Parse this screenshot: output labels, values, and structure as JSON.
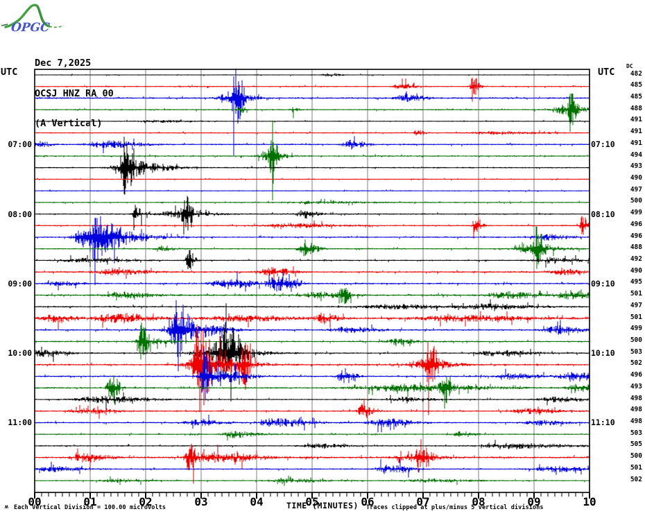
{
  "logo": {
    "text": "OPGC"
  },
  "header": {
    "date": "Dec 7,2025",
    "station": "OCSJ HNZ RA 00",
    "component": "(A Vertical)"
  },
  "axis": {
    "left_label": "UTC",
    "right_label": "UTC",
    "dc_label": "DC",
    "x_title": "TIME (MINUTES)",
    "x_ticks": [
      "00",
      "01",
      "02",
      "03",
      "04",
      "05",
      "06",
      "07",
      "08",
      "09",
      "10"
    ],
    "minor_ticks_per_major": 8,
    "left_times": [
      {
        "row": 6,
        "label": "07:00"
      },
      {
        "row": 12,
        "label": "08:00"
      },
      {
        "row": 18,
        "label": "09:00"
      },
      {
        "row": 24,
        "label": "10:00"
      },
      {
        "row": 30,
        "label": "11:00"
      }
    ],
    "right_times": [
      {
        "row": 6,
        "label": "07:10"
      },
      {
        "row": 12,
        "label": "08:10"
      },
      {
        "row": 18,
        "label": "09:10"
      },
      {
        "row": 24,
        "label": "10:10"
      },
      {
        "row": 30,
        "label": "11:10"
      }
    ]
  },
  "footer": {
    "corner_mark": "ʍ",
    "left": "Each Vertical Division =  100.00 microvolts",
    "right": "Traces clipped at plus/minus 5 vertical divisions"
  },
  "colors": {
    "black": "#000000",
    "red": "#ee0000",
    "blue": "#0000dd",
    "green": "#007100",
    "grid": "#7f7f7f",
    "logo_blue": "#4456c8",
    "logo_green": "#44a044"
  },
  "chart_data": {
    "type": "line",
    "subtype": "helicorder-seismogram",
    "x_unit": "minutes",
    "x_range": [
      0,
      10
    ],
    "minutes_per_row": 10,
    "clip_divisions": 5,
    "microvolts_per_division": 100.0,
    "rows": [
      {
        "start_utc": "06:00",
        "color": "black",
        "dc": 482,
        "noise": 0.7,
        "events": [
          [
            5.3,
            0.1,
            2.5
          ]
        ]
      },
      {
        "start_utc": "06:10",
        "color": "red",
        "dc": 485,
        "noise": 0.9,
        "events": [
          [
            7.9,
            0.05,
            14
          ],
          [
            6.6,
            0.12,
            4
          ]
        ]
      },
      {
        "start_utc": "06:20",
        "color": "blue",
        "dc": 485,
        "noise": 1.2,
        "events": [
          [
            3.62,
            0.05,
            36
          ],
          [
            3.5,
            0.18,
            9
          ],
          [
            6.7,
            0.15,
            6
          ]
        ]
      },
      {
        "start_utc": "06:30",
        "color": "green",
        "dc": 488,
        "noise": 1.0,
        "events": [
          [
            9.66,
            0.04,
            30
          ],
          [
            9.55,
            0.18,
            7
          ],
          [
            3.7,
            0.05,
            5
          ],
          [
            4.65,
            0.05,
            5
          ]
        ]
      },
      {
        "start_utc": "06:40",
        "color": "black",
        "dc": 491,
        "noise": 0.8,
        "events": [
          [
            2.2,
            0.3,
            1.5
          ]
        ]
      },
      {
        "start_utc": "06:50",
        "color": "red",
        "dc": 491,
        "noise": 0.9,
        "events": [
          [
            6.9,
            0.06,
            5
          ],
          [
            8.3,
            0.4,
            2
          ]
        ]
      },
      {
        "start_utc": "07:00",
        "color": "blue",
        "dc": 491,
        "noise": 1.1,
        "events": [
          [
            1.25,
            0.3,
            5
          ],
          [
            5.7,
            0.12,
            7
          ],
          [
            0.1,
            0.1,
            4
          ]
        ]
      },
      {
        "start_utc": "07:10",
        "color": "green",
        "dc": 494,
        "noise": 1.1,
        "events": [
          [
            4.27,
            0.04,
            60
          ],
          [
            4.2,
            0.15,
            7
          ]
        ]
      },
      {
        "start_utc": "07:20",
        "color": "black",
        "dc": 493,
        "noise": 1.0,
        "events": [
          [
            1.62,
            0.06,
            40
          ],
          [
            1.75,
            0.3,
            10
          ]
        ]
      },
      {
        "start_utc": "07:30",
        "color": "red",
        "dc": 490,
        "noise": 0.8,
        "events": []
      },
      {
        "start_utc": "07:40",
        "color": "blue",
        "dc": 497,
        "noise": 0.8,
        "events": []
      },
      {
        "start_utc": "07:50",
        "color": "green",
        "dc": 500,
        "noise": 0.9,
        "events": [
          [
            5.0,
            0.5,
            1.5
          ]
        ]
      },
      {
        "start_utc": "08:00",
        "color": "black",
        "dc": 499,
        "noise": 1.0,
        "events": [
          [
            2.72,
            0.05,
            38
          ],
          [
            1.82,
            0.06,
            13
          ],
          [
            2.55,
            0.3,
            5
          ],
          [
            4.85,
            0.12,
            6
          ]
        ]
      },
      {
        "start_utc": "08:10",
        "color": "red",
        "dc": 496,
        "noise": 1.0,
        "events": [
          [
            7.95,
            0.05,
            15
          ],
          [
            9.87,
            0.05,
            15
          ],
          [
            4.6,
            0.4,
            3
          ]
        ]
      },
      {
        "start_utc": "08:20",
        "color": "blue",
        "dc": 496,
        "noise": 1.1,
        "events": [
          [
            1.0,
            0.2,
            28
          ],
          [
            1.35,
            0.35,
            9
          ],
          [
            9.2,
            0.2,
            4
          ]
        ]
      },
      {
        "start_utc": "08:30",
        "color": "green",
        "dc": 488,
        "noise": 1.0,
        "events": [
          [
            4.87,
            0.1,
            13
          ],
          [
            9.05,
            0.06,
            26
          ],
          [
            8.95,
            0.25,
            7
          ],
          [
            2.3,
            0.1,
            4
          ]
        ]
      },
      {
        "start_utc": "08:40",
        "color": "black",
        "dc": 492,
        "noise": 1.0,
        "events": [
          [
            2.78,
            0.05,
            15
          ],
          [
            0.9,
            0.35,
            3
          ],
          [
            9.3,
            0.25,
            4
          ]
        ]
      },
      {
        "start_utc": "08:50",
        "color": "red",
        "dc": 490,
        "noise": 1.2,
        "events": [
          [
            1.4,
            0.3,
            4
          ],
          [
            4.25,
            0.18,
            6
          ],
          [
            9.5,
            0.2,
            4
          ]
        ]
      },
      {
        "start_utc": "09:00",
        "color": "blue",
        "dc": 495,
        "noise": 1.2,
        "events": [
          [
            3.45,
            0.25,
            7
          ],
          [
            4.35,
            0.12,
            11
          ],
          [
            4.6,
            0.08,
            9
          ],
          [
            0.4,
            0.2,
            3
          ]
        ]
      },
      {
        "start_utc": "09:10",
        "color": "green",
        "dc": 501,
        "noise": 1.3,
        "events": [
          [
            5.55,
            0.05,
            13
          ],
          [
            5.1,
            0.25,
            4
          ],
          [
            8.5,
            0.3,
            5
          ],
          [
            9.65,
            0.2,
            6
          ],
          [
            1.6,
            0.25,
            4
          ]
        ]
      },
      {
        "start_utc": "09:20",
        "color": "black",
        "dc": 497,
        "noise": 1.2,
        "events": [
          [
            6.4,
            0.4,
            3
          ],
          [
            8.1,
            0.4,
            3.5
          ]
        ]
      },
      {
        "start_utc": "09:30",
        "color": "red",
        "dc": 501,
        "noise": 1.5,
        "events": [
          [
            1.45,
            0.3,
            7
          ],
          [
            3.6,
            0.5,
            4
          ],
          [
            5.2,
            0.12,
            7
          ],
          [
            7.6,
            0.6,
            4
          ],
          [
            0.35,
            0.2,
            5
          ]
        ]
      },
      {
        "start_utc": "09:40",
        "color": "blue",
        "dc": 499,
        "noise": 1.2,
        "events": [
          [
            2.55,
            0.08,
            42
          ],
          [
            2.75,
            0.3,
            13
          ],
          [
            9.4,
            0.2,
            6
          ],
          [
            5.6,
            0.25,
            4
          ]
        ]
      },
      {
        "start_utc": "09:50",
        "color": "green",
        "dc": 500,
        "noise": 1.1,
        "events": [
          [
            1.92,
            0.05,
            26
          ],
          [
            2.05,
            0.2,
            6
          ],
          [
            6.5,
            0.2,
            4
          ]
        ]
      },
      {
        "start_utc": "10:00",
        "color": "black",
        "dc": 503,
        "noise": 1.1,
        "events": [
          [
            3.42,
            0.14,
            38
          ],
          [
            3.25,
            0.35,
            10
          ],
          [
            0.15,
            0.2,
            5
          ],
          [
            8.3,
            0.3,
            4
          ]
        ]
      },
      {
        "start_utc": "10:10",
        "color": "red",
        "dc": 502,
        "noise": 1.3,
        "events": [
          [
            2.95,
            0.1,
            58
          ],
          [
            3.15,
            0.35,
            13
          ],
          [
            3.77,
            0.05,
            33
          ],
          [
            7.12,
            0.06,
            33
          ],
          [
            7.0,
            0.25,
            7
          ]
        ]
      },
      {
        "start_utc": "10:20",
        "color": "blue",
        "dc": 496,
        "noise": 1.2,
        "events": [
          [
            3.05,
            0.06,
            38
          ],
          [
            3.35,
            0.25,
            8
          ],
          [
            5.55,
            0.1,
            13
          ],
          [
            9.7,
            0.2,
            7
          ],
          [
            8.6,
            0.25,
            4
          ]
        ]
      },
      {
        "start_utc": "10:30",
        "color": "green",
        "dc": 493,
        "noise": 1.2,
        "events": [
          [
            1.38,
            0.06,
            28
          ],
          [
            6.6,
            0.7,
            5
          ],
          [
            7.38,
            0.06,
            26
          ],
          [
            9.8,
            0.2,
            5
          ]
        ]
      },
      {
        "start_utc": "10:40",
        "color": "black",
        "dc": 498,
        "noise": 1.0,
        "events": [
          [
            1.2,
            0.4,
            5
          ],
          [
            6.6,
            0.25,
            3
          ],
          [
            9.4,
            0.3,
            3.5
          ]
        ]
      },
      {
        "start_utc": "10:50",
        "color": "red",
        "dc": 498,
        "noise": 1.1,
        "events": [
          [
            5.92,
            0.08,
            11
          ],
          [
            0.95,
            0.25,
            4
          ],
          [
            8.9,
            0.3,
            3.5
          ]
        ]
      },
      {
        "start_utc": "11:00",
        "color": "blue",
        "dc": 498,
        "noise": 1.1,
        "events": [
          [
            2.95,
            0.2,
            4
          ],
          [
            4.35,
            0.3,
            6
          ],
          [
            6.3,
            0.25,
            6
          ],
          [
            9.1,
            0.25,
            3.5
          ]
        ]
      },
      {
        "start_utc": "11:10",
        "color": "green",
        "dc": 503,
        "noise": 1.0,
        "events": [
          [
            3.6,
            0.18,
            5
          ],
          [
            7.7,
            0.12,
            4
          ]
        ]
      },
      {
        "start_utc": "11:20",
        "color": "black",
        "dc": 505,
        "noise": 1.0,
        "events": [
          [
            8.6,
            0.5,
            3.5
          ],
          [
            5.1,
            0.25,
            2.5
          ]
        ]
      },
      {
        "start_utc": "11:30",
        "color": "red",
        "dc": 500,
        "noise": 1.4,
        "events": [
          [
            0.9,
            0.18,
            7
          ],
          [
            2.78,
            0.07,
            19
          ],
          [
            3.3,
            0.35,
            7
          ],
          [
            6.95,
            0.07,
            21
          ],
          [
            6.8,
            0.25,
            5
          ]
        ]
      },
      {
        "start_utc": "11:40",
        "color": "blue",
        "dc": 501,
        "noise": 1.0,
        "events": [
          [
            0.3,
            0.3,
            3.5
          ],
          [
            6.3,
            0.12,
            6
          ],
          [
            6.65,
            0.12,
            4
          ],
          [
            9.35,
            0.3,
            4
          ]
        ]
      },
      {
        "start_utc": "11:50",
        "color": "green",
        "dc": 502,
        "noise": 0.9,
        "events": [
          [
            1.5,
            0.25,
            2.5
          ],
          [
            4.6,
            0.35,
            2.5
          ],
          [
            7.1,
            0.35,
            2.5
          ]
        ]
      }
    ]
  }
}
